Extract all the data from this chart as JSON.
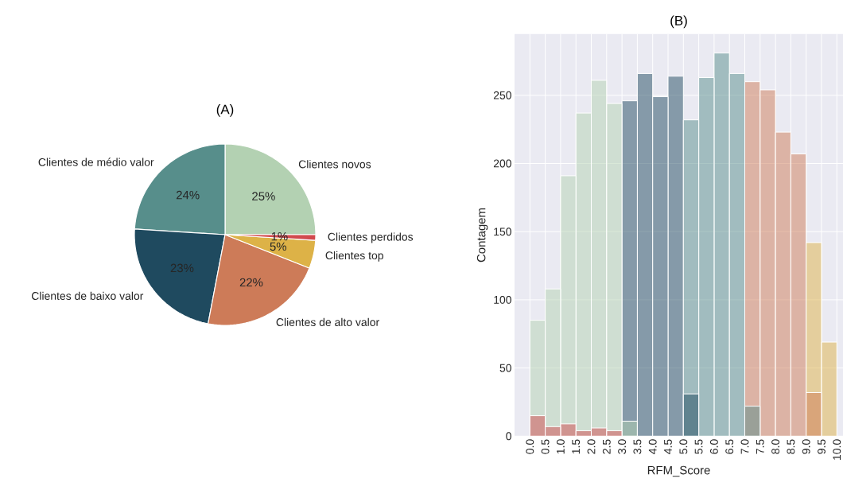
{
  "chart_data": [
    {
      "type": "pie",
      "title": "(A)",
      "categories": [
        "Clientes novos",
        "Clientes de médio valor",
        "Clientes de baixo valor",
        "Clientes de alto valor",
        "Clientes top",
        "Clientes perdidos"
      ],
      "values": [
        25,
        24,
        23,
        22,
        5,
        1
      ],
      "value_labels": [
        "25%",
        "24%",
        "23%",
        "22%",
        "5%",
        "1%"
      ],
      "colors": [
        "#b3d1b2",
        "#578e8b",
        "#1f4a5f",
        "#cd7b58",
        "#ddb247",
        "#d1494d"
      ]
    },
    {
      "type": "histogram",
      "title": "(B)",
      "xlabel": "RFM_Score",
      "ylabel": "Contagem",
      "bins": [
        0,
        0.5,
        1,
        1.5,
        2,
        2.5,
        3,
        3.5,
        4,
        4.5,
        5,
        5.5,
        6,
        6.5,
        7,
        7.5,
        8,
        8.5,
        9,
        9.5,
        10
      ],
      "series": [
        {
          "color": "#b3d1b2",
          "values": [
            85,
            108,
            191,
            237,
            261,
            244,
            11,
            null,
            null,
            null,
            null,
            null,
            null,
            null,
            null,
            null,
            null,
            null,
            null,
            null
          ]
        },
        {
          "color": "#578e8b",
          "values": [
            null,
            null,
            null,
            null,
            null,
            null,
            null,
            null,
            null,
            null,
            232,
            263,
            281,
            266,
            22,
            null,
            null,
            null,
            null,
            null
          ]
        },
        {
          "color": "#1f4a5f",
          "values": [
            null,
            null,
            null,
            null,
            null,
            null,
            246,
            266,
            249,
            264,
            31,
            null,
            null,
            null,
            null,
            null,
            null,
            null,
            null,
            null
          ]
        },
        {
          "color": "#cd7b58",
          "values": [
            null,
            null,
            null,
            null,
            null,
            null,
            null,
            null,
            null,
            null,
            null,
            null,
            null,
            null,
            260,
            254,
            223,
            207,
            32,
            null
          ]
        },
        {
          "color": "#ddb247",
          "values": [
            null,
            null,
            null,
            null,
            null,
            null,
            null,
            null,
            null,
            null,
            null,
            null,
            null,
            null,
            null,
            null,
            null,
            null,
            142,
            69
          ]
        },
        {
          "color": "#d1494d",
          "values": [
            15,
            7,
            9,
            4,
            6,
            4,
            null,
            null,
            null,
            null,
            null,
            null,
            null,
            null,
            null,
            null,
            null,
            null,
            null,
            null
          ]
        }
      ],
      "xlim": [
        -0.5,
        10.2
      ],
      "ylim": [
        0,
        295
      ],
      "xticks": [
        {
          "value": 0,
          "label": "0.0"
        },
        {
          "value": 0.5,
          "label": "0.5"
        },
        {
          "value": 1,
          "label": "1.0"
        },
        {
          "value": 1.5,
          "label": "1.5"
        },
        {
          "value": 2,
          "label": "2.0"
        },
        {
          "value": 2.5,
          "label": "2.5"
        },
        {
          "value": 3,
          "label": "3.0"
        },
        {
          "value": 3.5,
          "label": "3.5"
        },
        {
          "value": 4,
          "label": "4.0"
        },
        {
          "value": 4.5,
          "label": "4.5"
        },
        {
          "value": 5,
          "label": "5.0"
        },
        {
          "value": 5.5,
          "label": "5.5"
        },
        {
          "value": 6,
          "label": "6.0"
        },
        {
          "value": 6.5,
          "label": "6.5"
        },
        {
          "value": 7,
          "label": "7.0"
        },
        {
          "value": 7.5,
          "label": "7.5"
        },
        {
          "value": 8,
          "label": "8.0"
        },
        {
          "value": 8.5,
          "label": "8.5"
        },
        {
          "value": 9,
          "label": "9.0"
        },
        {
          "value": 9.5,
          "label": "9.5"
        },
        {
          "value": 10,
          "label": "10.0"
        }
      ],
      "yticks": [
        0,
        50,
        100,
        150,
        200,
        250
      ],
      "grid": true
    }
  ]
}
